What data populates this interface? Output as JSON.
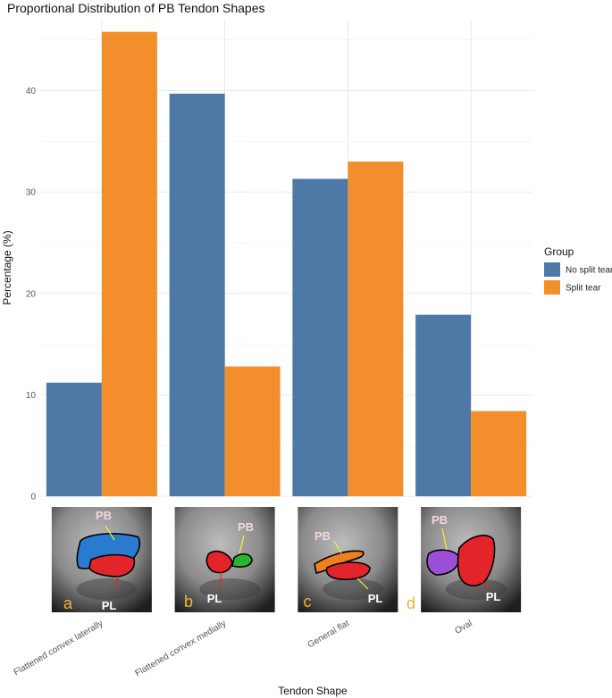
{
  "chart_data": {
    "type": "bar",
    "title": "Proportional Distribution of PB Tendon Shapes",
    "xlabel": "Tendon Shape",
    "ylabel": "Percentage (%)",
    "categories": [
      "Flattened convex laterally",
      "Flattened convex medially",
      "General flat",
      "Oval"
    ],
    "series": [
      {
        "name": "No split tear",
        "values": [
          11.2,
          39.7,
          31.3,
          17.9
        ],
        "color": "#4e79a7"
      },
      {
        "name": "Split tear",
        "values": [
          45.8,
          12.8,
          33.0,
          8.4
        ],
        "color": "#f28e2b"
      }
    ],
    "ylim": [
      0,
      47
    ],
    "yticks": [
      0,
      10,
      20,
      30,
      40
    ],
    "grid": true,
    "legend": {
      "title": "Group",
      "position": "right"
    }
  },
  "panels": [
    {
      "letter": "a",
      "pb_label": "PB",
      "pl_label": "PL",
      "pb_color": "#2a7bd0",
      "pl_color": "#e3242b"
    },
    {
      "letter": "b",
      "pb_label": "PB",
      "pl_label": "PL",
      "pb_color": "#27b52e",
      "pl_color": "#e3242b"
    },
    {
      "letter": "c",
      "pb_label": "PB",
      "pl_label": "PL",
      "pb_color": "#f07f1d",
      "pl_color": "#e3242b"
    },
    {
      "letter": "d",
      "pb_label": "PB",
      "pl_label": "PL",
      "pb_color": "#9b4fd6",
      "pl_color": "#e3242b"
    }
  ]
}
